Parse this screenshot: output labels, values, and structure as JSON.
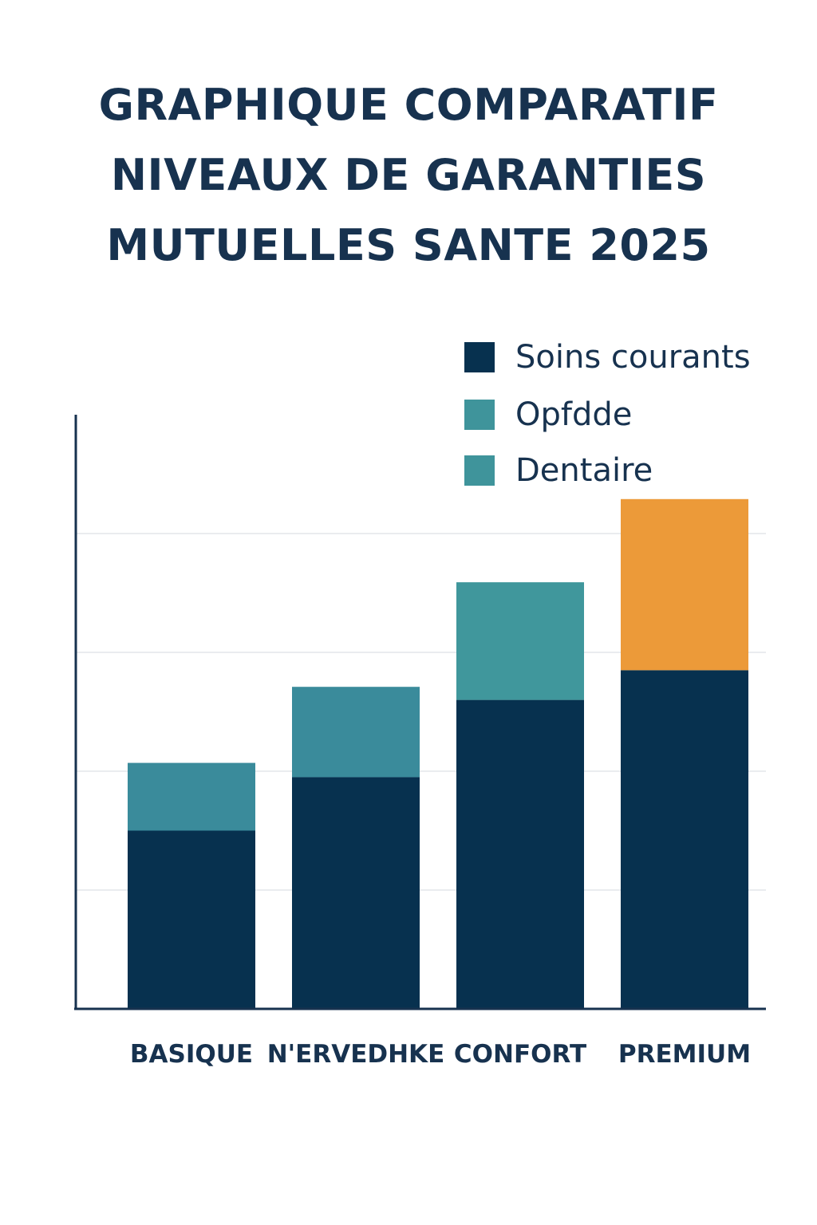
{
  "title_lines": [
    "GRAPHIQUE COMPARATIF",
    "NIVEAUX DE GARANTIES",
    "MUTUELLES SANTE 2025"
  ],
  "legend": [
    {
      "label": "Soins courants",
      "color": "#07314f"
    },
    {
      "label": "Opfdde",
      "color": "#3f949b"
    },
    {
      "label": "Dentaire",
      "color": "#3f949b"
    }
  ],
  "chart_data": {
    "type": "bar",
    "stacked": true,
    "title": "GRAPHIQUE COMPARATIF NIVEAUX DE GARANTIES MUTUELLES SANTE 2025",
    "categories": [
      "BASIQUE",
      "N'ERVEDHKE",
      "CONFORT",
      "PREMIUM"
    ],
    "series": [
      {
        "name": "Soins courants",
        "color": "#07314f",
        "values": [
          1.5,
          1.95,
          2.6,
          2.85
        ]
      },
      {
        "name": "",
        "colors": [
          "#3a8b9b",
          "#3a8b9b",
          "#40979c",
          "#ec9a39"
        ],
        "values": [
          0.57,
          0.76,
          0.99,
          1.44
        ]
      }
    ],
    "ylim": [
      0,
      5
    ],
    "gridlines": [
      1,
      2,
      3,
      4
    ],
    "tick_labels_shown": false,
    "grid": true,
    "legend_position": "top-right"
  }
}
